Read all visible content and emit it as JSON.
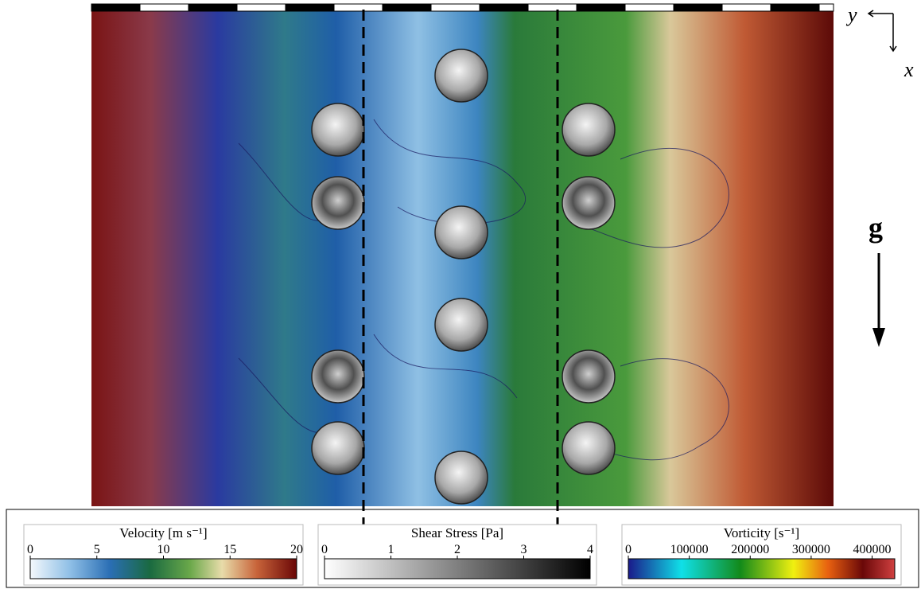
{
  "axes_labels": {
    "y": "y",
    "x": "x",
    "gravity": "g"
  },
  "colorbars": [
    {
      "title": "Velocity [m s⁻¹]",
      "ticks": [
        0,
        5,
        10,
        15,
        20
      ]
    },
    {
      "title": "Shear Stress [Pa]",
      "ticks": [
        0,
        1,
        2,
        3,
        4
      ]
    },
    {
      "title": "Vorticity [s⁻¹]",
      "ticks": [
        0,
        100000,
        200000,
        300000,
        400000
      ]
    }
  ]
}
